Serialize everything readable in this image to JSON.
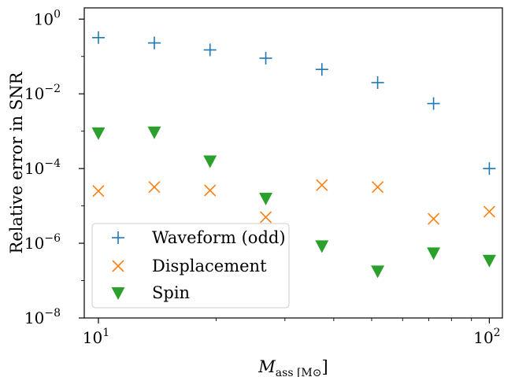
{
  "chart_data": {
    "type": "scatter",
    "xlabel": "Mass [M⊙]",
    "ylabel": "Relative error in SNR",
    "x_scale": "log",
    "y_scale": "log",
    "xlim": [
      9.2,
      108
    ],
    "ylim": [
      1e-08,
      2.0
    ],
    "x_ticks": [
      {
        "value": 10,
        "base": "10",
        "exp": "1"
      },
      {
        "value": 100,
        "base": "10",
        "exp": "2"
      }
    ],
    "y_ticks": [
      {
        "value": 1e-08,
        "base": "10",
        "exp": "−8"
      },
      {
        "value": 1e-06,
        "base": "10",
        "exp": "−6"
      },
      {
        "value": 0.0001,
        "base": "10",
        "exp": "−4"
      },
      {
        "value": 0.01,
        "base": "10",
        "exp": "−2"
      },
      {
        "value": 1,
        "base": "10",
        "exp": "0"
      }
    ],
    "grid": false,
    "legend_position": "lower-left",
    "x": [
      10,
      13.9,
      19.3,
      26.8,
      37.3,
      51.8,
      72.0,
      100
    ],
    "series": [
      {
        "name": "Waveform (odd)",
        "marker": "plus",
        "color": "#1f77b4",
        "values": [
          0.32,
          0.23,
          0.15,
          0.09,
          0.045,
          0.02,
          0.0055,
          0.0001
        ]
      },
      {
        "name": "Displacement",
        "marker": "x",
        "color": "#ff7f0e",
        "values": [
          2.5e-05,
          3.2e-05,
          2.6e-05,
          5e-06,
          3.6e-05,
          3.2e-05,
          4.5e-06,
          7e-06
        ]
      },
      {
        "name": "Spin",
        "marker": "triangle-down",
        "color": "#2ca02c",
        "values": [
          0.0009,
          0.00095,
          0.00016,
          1.6e-05,
          8.5e-07,
          1.8e-07,
          5.5e-07,
          3.5e-07
        ]
      }
    ]
  }
}
